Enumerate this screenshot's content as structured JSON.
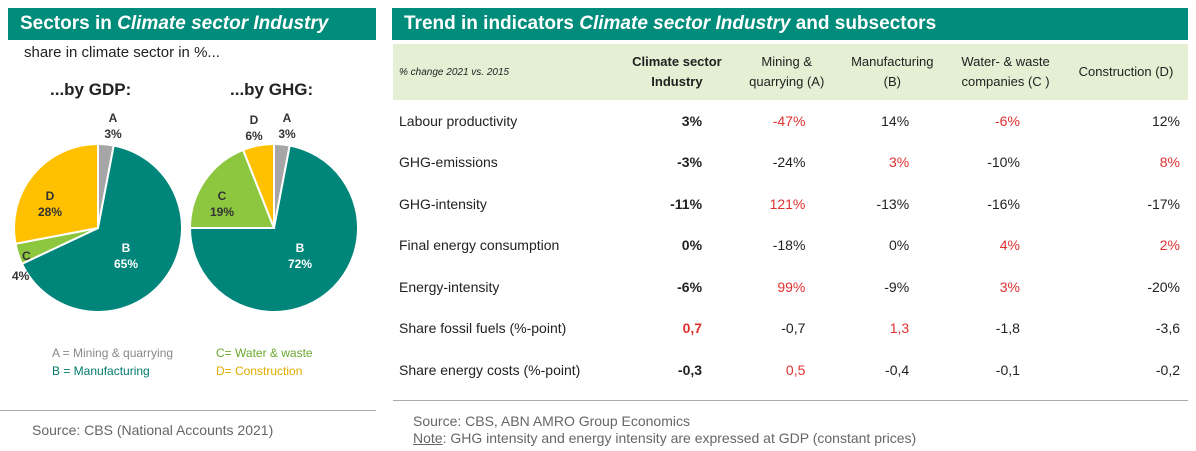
{
  "left_panel": {
    "title_prefix": "Sectors in ",
    "title_italic": "Climate sector Industry",
    "subtitle": "share in climate sector in %...",
    "source": "Source: CBS (National Accounts 2021)",
    "legend": {
      "a": "A = Mining & quarrying",
      "b": "B = Manufacturing",
      "c": "C= Water & waste",
      "d": "D= Construction"
    }
  },
  "right_panel": {
    "title_prefix": "Trend in indicators ",
    "title_italic": "Climate sector Industry",
    "title_suffix": " and subsectors",
    "source": "Source: CBS, ABN AMRO Group Economics",
    "note_label": "Note",
    "note_text": ": GHG intensity and energy intensity are expressed at GDP (constant prices)"
  },
  "colors": {
    "header_bg": "#008c7a",
    "table_header_bg": "#e4efd3",
    "A": "#a6a6a6",
    "B": "#00857a",
    "C": "#8dc63f",
    "D": "#ffc000",
    "highlight_red": "#e03030",
    "legend_a": "#888888",
    "legend_b": "#007a6e",
    "legend_c": "#6aa82e",
    "legend_d": "#e0aa00"
  },
  "chart_data": [
    {
      "type": "pie",
      "title": "...by GDP:",
      "slices": [
        {
          "label": "A",
          "value": 3,
          "text": "3%",
          "color": "#a6a6a6"
        },
        {
          "label": "B",
          "value": 65,
          "text": "65%",
          "color": "#00857a"
        },
        {
          "label": "C",
          "value": 4,
          "text": "4%",
          "color": "#8dc63f"
        },
        {
          "label": "D",
          "value": 28,
          "text": "28%",
          "color": "#ffc000"
        }
      ]
    },
    {
      "type": "pie",
      "title": "...by GHG:",
      "slices": [
        {
          "label": "A",
          "value": 3,
          "text": "3%",
          "color": "#a6a6a6"
        },
        {
          "label": "B",
          "value": 72,
          "text": "72%",
          "color": "#00857a"
        },
        {
          "label": "C",
          "value": 19,
          "text": "19%",
          "color": "#8dc63f"
        },
        {
          "label": "D",
          "value": 6,
          "text": "6%",
          "color": "#ffc000"
        }
      ]
    },
    {
      "type": "table",
      "header_label": "% change 2021 vs. 2015",
      "columns": [
        [
          "Climate sector",
          "Industry"
        ],
        [
          "Mining &",
          "quarrying (A)"
        ],
        [
          "Manufacturing",
          "(B)"
        ],
        [
          "Water- & waste",
          "companies (C )"
        ],
        [
          "Construction (D)"
        ]
      ],
      "rows": [
        {
          "label": "Labour productivity",
          "values": [
            "3%",
            "-47%",
            "14%",
            "-6%",
            "12%"
          ],
          "red": [
            false,
            true,
            false,
            true,
            false
          ]
        },
        {
          "label": "GHG-emissions",
          "values": [
            "-3%",
            "-24%",
            "3%",
            "-10%",
            "8%"
          ],
          "red": [
            false,
            false,
            true,
            false,
            true
          ]
        },
        {
          "label": "GHG-intensity",
          "values": [
            "-11%",
            "121%",
            "-13%",
            "-16%",
            "-17%"
          ],
          "red": [
            false,
            true,
            false,
            false,
            false
          ]
        },
        {
          "label": "Final energy consumption",
          "values": [
            "0%",
            "-18%",
            "0%",
            "4%",
            "2%"
          ],
          "red": [
            false,
            false,
            false,
            true,
            true
          ]
        },
        {
          "label": "Energy-intensity",
          "values": [
            "-6%",
            "99%",
            "-9%",
            "3%",
            "-20%"
          ],
          "red": [
            false,
            true,
            false,
            true,
            false
          ]
        },
        {
          "label": "Share fossil fuels (%-point)",
          "values": [
            "0,7",
            "-0,7",
            "1,3",
            "-1,8",
            "-3,6"
          ],
          "red": [
            true,
            false,
            true,
            false,
            false
          ]
        },
        {
          "label": "Share energy costs (%-point)",
          "values": [
            "-0,3",
            "0,5",
            "-0,4",
            "-0,1",
            "-0,2"
          ],
          "red": [
            false,
            true,
            false,
            false,
            false
          ]
        }
      ]
    }
  ]
}
